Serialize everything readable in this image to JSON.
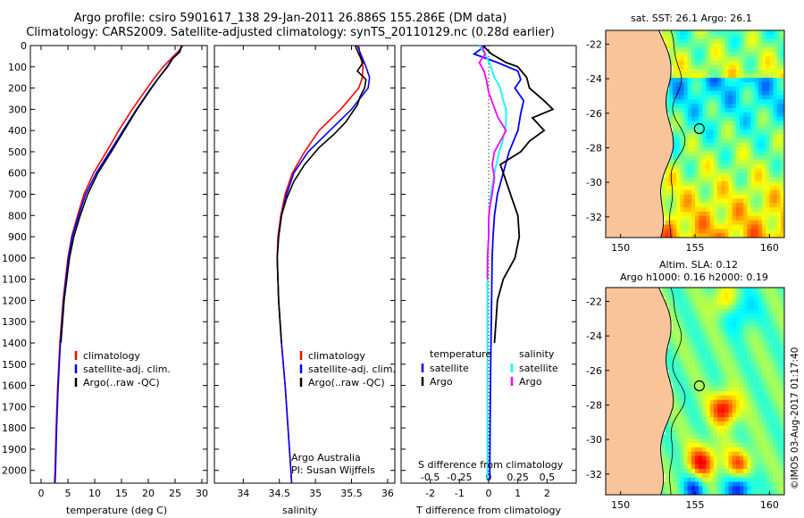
{
  "header": {
    "line1": "Argo profile: csiro 5901617_138 29-Jan-2011 26.886S 155.286E (DM data)",
    "line2": "Climatology: CARS2009. Satellite-adjusted climatology: synTS_20110129.nc (0.28d earlier)"
  },
  "colors": {
    "climatology": "#ff0000",
    "satellite": "#0000ff",
    "argo": "#000000",
    "argo_salinity_diff": "#ff00ff",
    "satellite_salinity_diff": "#00ffff",
    "land": "#f9c49a"
  },
  "depth_axis": {
    "ticks": [
      "0",
      "100",
      "200",
      "300",
      "400",
      "500",
      "600",
      "700",
      "800",
      "900",
      "1000",
      "1100",
      "1200",
      "1300",
      "1400",
      "1500",
      "1600",
      "1700",
      "1800",
      "1900",
      "2000"
    ],
    "min": 0,
    "max": 2060
  },
  "chart_data": [
    {
      "type": "line",
      "panel": "temperature",
      "xlabel": "temperature (deg C)",
      "ylabel": "depth",
      "xlim": [
        -2,
        31
      ],
      "ylim": [
        2060,
        0
      ],
      "xticks": [
        "0",
        "5",
        "10",
        "15",
        "20",
        "25",
        "30"
      ],
      "xtick_values": [
        0,
        5,
        10,
        15,
        20,
        25,
        30
      ],
      "legend": [
        "climatology",
        "satellite-adj. clim.",
        "Argo(..raw -QC)"
      ],
      "series": [
        {
          "name": "climatology",
          "color": "#ff0000",
          "depth": [
            0,
            30,
            60,
            100,
            150,
            200,
            300,
            400,
            500,
            600,
            700,
            800,
            900,
            1000,
            1200,
            1400,
            1600,
            1800,
            2000,
            2060
          ],
          "values": [
            26.5,
            25.5,
            24.3,
            22.8,
            21.2,
            19.8,
            17.0,
            14.5,
            12.2,
            9.8,
            8.0,
            6.8,
            5.7,
            5.0,
            4.1,
            3.5,
            3.1,
            2.8,
            2.6,
            2.5
          ]
        },
        {
          "name": "satellite-adj. clim.",
          "color": "#0000ff",
          "depth": [
            0,
            30,
            60,
            100,
            150,
            200,
            300,
            400,
            500,
            600,
            700,
            800,
            900,
            1000,
            1200,
            1400,
            1600,
            1800,
            2000,
            2060
          ],
          "values": [
            26.3,
            25.8,
            24.5,
            23.5,
            22.0,
            20.5,
            17.8,
            15.3,
            12.8,
            10.3,
            8.3,
            7.0,
            5.8,
            5.1,
            4.2,
            3.6,
            3.2,
            2.9,
            2.7,
            2.6
          ]
        },
        {
          "name": "Argo(..raw -QC)",
          "color": "#000000",
          "depth": [
            0,
            30,
            60,
            100,
            150,
            200,
            300,
            400,
            500,
            600,
            700,
            800,
            900,
            1000,
            1200,
            1400
          ],
          "values": [
            26.2,
            25.9,
            24.6,
            23.6,
            22.0,
            20.6,
            17.9,
            15.5,
            13.1,
            10.6,
            8.7,
            7.3,
            6.1,
            5.3,
            4.3,
            3.7
          ]
        }
      ]
    },
    {
      "type": "line",
      "panel": "salinity",
      "xlabel": "salinity",
      "ylabel": "depth",
      "xlim": [
        33.6,
        36.1
      ],
      "ylim": [
        2060,
        0
      ],
      "xticks": [
        "34",
        "34.5",
        "35",
        "35.5",
        "36"
      ],
      "xtick_values": [
        34,
        34.5,
        35,
        35.5,
        36
      ],
      "legend": [
        "climatology",
        "satellite-adj. clim.",
        "Argo(..raw -QC)"
      ],
      "series": [
        {
          "name": "climatology",
          "color": "#ff0000",
          "depth": [
            0,
            50,
            100,
            150,
            200,
            300,
            400,
            500,
            600,
            700,
            800,
            900,
            1000,
            1200,
            1400,
            1600,
            1800,
            2000,
            2060
          ],
          "values": [
            35.6,
            35.62,
            35.66,
            35.65,
            35.6,
            35.35,
            35.05,
            34.85,
            34.68,
            34.58,
            34.52,
            34.48,
            34.47,
            34.49,
            34.53,
            34.58,
            34.62,
            34.66,
            34.67
          ]
        },
        {
          "name": "satellite-adj. clim.",
          "color": "#0000ff",
          "depth": [
            0,
            50,
            100,
            150,
            200,
            300,
            400,
            500,
            600,
            700,
            800,
            900,
            1000,
            1200,
            1400,
            1600,
            1800,
            2000,
            2060
          ],
          "values": [
            35.58,
            35.64,
            35.7,
            35.75,
            35.73,
            35.5,
            35.2,
            34.9,
            34.7,
            34.6,
            34.53,
            34.49,
            34.47,
            34.49,
            34.53,
            34.58,
            34.62,
            34.66,
            34.67
          ]
        },
        {
          "name": "Argo(..raw -QC)",
          "color": "#000000",
          "depth": [
            0,
            40,
            80,
            120,
            160,
            200,
            240,
            280,
            320,
            360,
            420,
            480,
            560,
            640,
            720,
            800,
            900,
            1000,
            1200,
            1400
          ],
          "values": [
            35.55,
            35.6,
            35.66,
            35.58,
            35.7,
            35.68,
            35.62,
            35.58,
            35.5,
            35.42,
            35.25,
            35.05,
            34.85,
            34.7,
            34.6,
            34.53,
            34.49,
            34.47,
            34.49,
            34.53
          ]
        }
      ],
      "annotation": [
        "Argo Australia",
        "PI: Susan Wijffels"
      ]
    },
    {
      "type": "line",
      "panel": "difference",
      "xlabel": "T difference from climatology",
      "xlabel_top": "S difference from climatology",
      "xlim": [
        -3,
        3
      ],
      "ylim": [
        2060,
        0
      ],
      "xticks": [
        "-2",
        "-1",
        "0",
        "1",
        "2"
      ],
      "xtick_values": [
        -2,
        -1,
        0,
        1,
        2
      ],
      "sticks": [
        "-0.5",
        "-0.25",
        "0",
        "0.25",
        "0.5"
      ],
      "stick_values": [
        -0.5,
        -0.25,
        0,
        0.25,
        0.5
      ],
      "legend_titles": [
        "temperature",
        "salinity"
      ],
      "legend": [
        "satellite",
        "Argo",
        "satellite",
        "Argo"
      ],
      "series": [
        {
          "name": "temperature satellite",
          "color": "#0000ff",
          "depth": [
            0,
            40,
            80,
            120,
            160,
            200,
            260,
            320,
            400,
            500,
            600,
            700,
            800,
            900,
            1000,
            1200,
            1400,
            1600,
            1800,
            2000,
            2040
          ],
          "values": [
            -0.1,
            -0.5,
            0.3,
            1.0,
            1.1,
            0.9,
            1.2,
            1.1,
            1.0,
            0.7,
            0.5,
            0.3,
            0.2,
            0.15,
            0.12,
            0.1,
            0.08,
            0.06,
            0.05,
            0.04,
            0.04
          ]
        },
        {
          "name": "temperature Argo",
          "color": "#000000",
          "depth": [
            0,
            40,
            80,
            100,
            150,
            200,
            260,
            300,
            340,
            400,
            450,
            500,
            560,
            640,
            720,
            800,
            900,
            1000,
            1100,
            1200,
            1300,
            1400
          ],
          "values": [
            -0.2,
            0.1,
            0.6,
            1.0,
            1.3,
            1.4,
            1.9,
            2.2,
            1.5,
            1.9,
            1.4,
            1.1,
            0.4,
            0.6,
            0.8,
            1.0,
            1.05,
            0.9,
            0.5,
            0.3,
            0.25,
            0.2
          ]
        },
        {
          "name": "salinity satellite",
          "color": "#00ffff",
          "depth": [
            0,
            50,
            100,
            150,
            200,
            250,
            300,
            350,
            400,
            450,
            500,
            550,
            600,
            700,
            800,
            900,
            1000,
            1200,
            1400,
            1600,
            1800,
            2000,
            2040
          ],
          "values": [
            -0.08,
            -0.02,
            0.02,
            0.05,
            0.1,
            0.12,
            0.15,
            0.15,
            0.14,
            0.12,
            0.09,
            0.07,
            0.05,
            0.02,
            0.0,
            0.0,
            -0.01,
            -0.01,
            -0.01,
            -0.01,
            -0.01,
            -0.01,
            -0.01
          ]
        },
        {
          "name": "salinity Argo",
          "color": "#ff00ff",
          "depth": [
            0,
            40,
            80,
            120,
            160,
            220,
            280,
            340,
            400,
            450,
            500,
            560,
            620,
            700,
            760,
            820,
            900,
            1000,
            1050,
            1100
          ],
          "values": [
            -0.06,
            -0.03,
            -0.08,
            -0.04,
            -0.02,
            0.0,
            0.04,
            0.08,
            0.15,
            0.1,
            0.05,
            0.03,
            0.05,
            0.03,
            0.01,
            0.0,
            0.0,
            -0.01,
            -0.01,
            -0.01
          ]
        }
      ]
    }
  ],
  "maps": {
    "top": {
      "title": "sat. SST: 26.1  Argo: 26.1",
      "lon_ticks": [
        "150",
        "155",
        "160"
      ],
      "lat_ticks": [
        "-22",
        "-24",
        "-26",
        "-28",
        "-30",
        "-32"
      ]
    },
    "bottom": {
      "title1": "Altim. SLA: 0.12",
      "title2": "Argo h1000: 0.16 h2000: 0.19",
      "lon_ticks": [
        "150",
        "155",
        "160"
      ],
      "lat_ticks": [
        "-22",
        "-24",
        "-26",
        "-28",
        "-30",
        "-32"
      ]
    }
  },
  "footer": {
    "stamp": "©IMOS 03-Aug-2017 01:17:40"
  }
}
